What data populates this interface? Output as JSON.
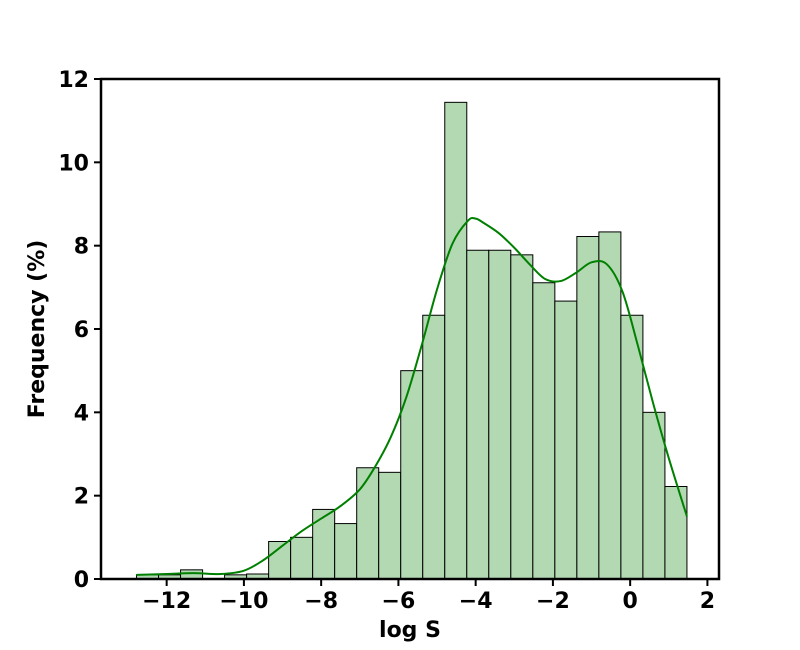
{
  "chart_data": {
    "type": "bar",
    "subtype": "histogram-with-kde",
    "xlabel": "log S",
    "ylabel": "Frequency (%)",
    "xlim": [
      -13.7,
      2.3
    ],
    "ylim": [
      0,
      12
    ],
    "xticks": [
      -12,
      -10,
      -8,
      -6,
      -4,
      -2,
      0,
      2
    ],
    "yticks": [
      0,
      2,
      4,
      6,
      8,
      10,
      12
    ],
    "xtick_labels": [
      "−12",
      "−10",
      "−8",
      "−6",
      "−4",
      "−2",
      "0",
      "2"
    ],
    "ytick_labels": [
      "0",
      "2",
      "4",
      "6",
      "8",
      "10",
      "12"
    ],
    "bins": [
      {
        "x0": -12.78,
        "x1": -12.21,
        "value": 0.1
      },
      {
        "x0": -12.21,
        "x1": -11.64,
        "value": 0.1
      },
      {
        "x0": -11.64,
        "x1": -11.07,
        "value": 0.22
      },
      {
        "x0": -11.07,
        "x1": -10.5,
        "value": 0
      },
      {
        "x0": -10.5,
        "x1": -9.93,
        "value": 0.1
      },
      {
        "x0": -9.93,
        "x1": -9.36,
        "value": 0.12
      },
      {
        "x0": -9.36,
        "x1": -8.79,
        "value": 0.9
      },
      {
        "x0": -8.79,
        "x1": -8.22,
        "value": 1.0
      },
      {
        "x0": -8.22,
        "x1": -7.65,
        "value": 1.67
      },
      {
        "x0": -7.65,
        "x1": -7.08,
        "value": 1.33
      },
      {
        "x0": -7.08,
        "x1": -6.51,
        "value": 2.67
      },
      {
        "x0": -6.51,
        "x1": -5.94,
        "value": 2.56
      },
      {
        "x0": -5.94,
        "x1": -5.37,
        "value": 5.0
      },
      {
        "x0": -5.37,
        "x1": -4.8,
        "value": 6.33
      },
      {
        "x0": -4.8,
        "x1": -4.23,
        "value": 11.44
      },
      {
        "x0": -4.23,
        "x1": -3.66,
        "value": 7.89
      },
      {
        "x0": -3.66,
        "x1": -3.09,
        "value": 7.89
      },
      {
        "x0": -3.09,
        "x1": -2.52,
        "value": 7.78
      },
      {
        "x0": -2.52,
        "x1": -1.95,
        "value": 7.11
      },
      {
        "x0": -1.95,
        "x1": -1.38,
        "value": 6.67
      },
      {
        "x0": -1.38,
        "x1": -0.81,
        "value": 8.22
      },
      {
        "x0": -0.81,
        "x1": -0.24,
        "value": 8.33
      },
      {
        "x0": -0.24,
        "x1": 0.33,
        "value": 6.33
      },
      {
        "x0": 0.33,
        "x1": 0.9,
        "value": 4.0
      },
      {
        "x0": 0.9,
        "x1": 1.47,
        "value": 2.22
      }
    ],
    "kde": {
      "x": [
        -12.78,
        -12.0,
        -11.3,
        -10.6,
        -10.0,
        -9.5,
        -9.0,
        -8.5,
        -8.0,
        -7.5,
        -7.0,
        -6.6,
        -6.2,
        -5.8,
        -5.4,
        -5.0,
        -4.6,
        -4.2,
        -4.0,
        -3.8,
        -3.4,
        -3.0,
        -2.6,
        -2.2,
        -1.8,
        -1.4,
        -1.0,
        -0.6,
        -0.2,
        0.2,
        0.6,
        1.0,
        1.47
      ],
      "y": [
        0.1,
        0.12,
        0.14,
        0.12,
        0.2,
        0.45,
        0.8,
        1.15,
        1.45,
        1.75,
        2.15,
        2.7,
        3.4,
        4.35,
        5.6,
        6.95,
        8.05,
        8.6,
        8.65,
        8.55,
        8.3,
        7.95,
        7.55,
        7.2,
        7.15,
        7.35,
        7.6,
        7.55,
        6.9,
        5.6,
        4.2,
        2.9,
        1.5
      ]
    },
    "colors": {
      "bar_fill": "#b3d9b3",
      "bar_edge": "#000000",
      "kde_line": "#008000"
    },
    "grid": false,
    "legend": "none"
  }
}
